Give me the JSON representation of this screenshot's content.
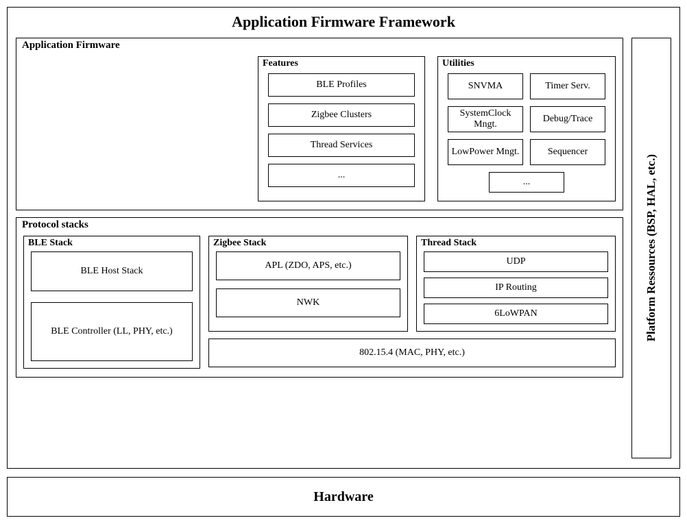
{
  "type": "block-diagram",
  "background_color": "#ffffff",
  "border_color": "#000000",
  "text_color": "#000000",
  "font_family": "Times New Roman",
  "framework": {
    "title": "Application Firmware Framework",
    "title_fontsize": 22
  },
  "app_firmware": {
    "title": "Application Firmware",
    "features": {
      "title": "Features",
      "items": [
        "BLE Profiles",
        "Zigbee Clusters",
        "Thread Services",
        "..."
      ]
    },
    "utilities": {
      "title": "Utilities",
      "rows": [
        [
          "SNVMA",
          "Timer Serv."
        ],
        [
          "SystemClock Mngt.",
          "Debug/Trace"
        ],
        [
          "LowPower Mngt.",
          "Sequencer"
        ]
      ],
      "more": "..."
    }
  },
  "protocol_stacks": {
    "title": "Protocol stacks",
    "ble": {
      "title": "BLE Stack",
      "layers": [
        "BLE Host Stack",
        "BLE Controller (LL, PHY, etc.)"
      ]
    },
    "zigbee": {
      "title": "Zigbee Stack",
      "layers": [
        "APL (ZDO, APS, etc.)",
        "NWK"
      ]
    },
    "thread": {
      "title": "Thread Stack",
      "layers": [
        "UDP",
        "IP Routing",
        "6LoWPAN"
      ]
    },
    "mac": "802.15.4 (MAC, PHY,  etc.)"
  },
  "platform": {
    "label": "Platform Ressources (BSP, HAL, etc.)"
  },
  "hardware": {
    "label": "Hardware"
  }
}
